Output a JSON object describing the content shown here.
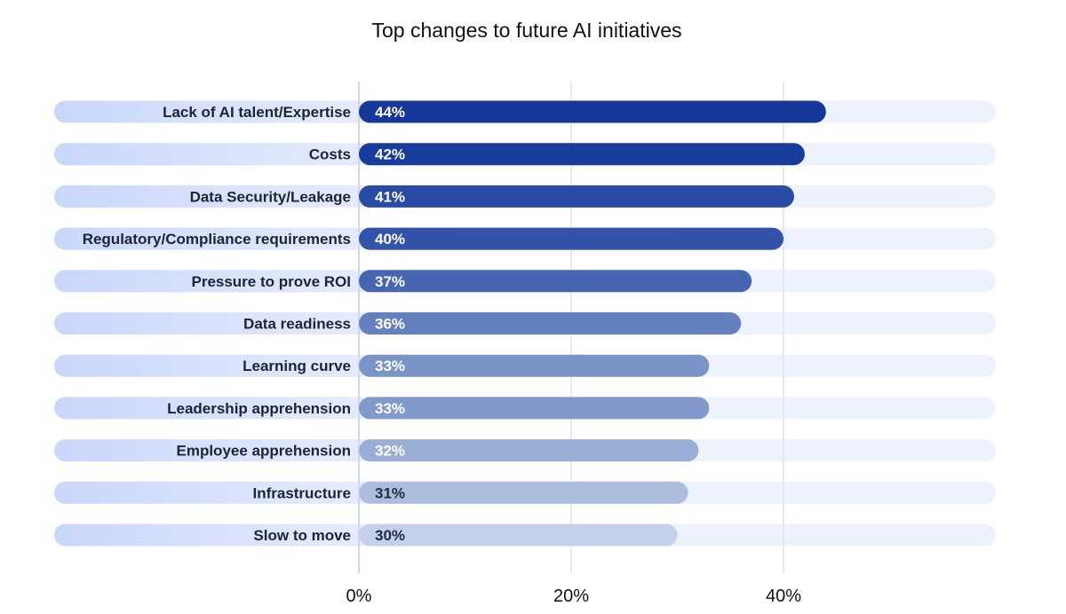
{
  "chart_data": {
    "type": "bar",
    "orientation": "horizontal",
    "title": "Top changes to future AI initiatives",
    "xlabel": "",
    "ylabel": "",
    "xlim": [
      0,
      59
    ],
    "x_ticks": [
      0,
      20,
      40
    ],
    "x_tick_labels": [
      "0%",
      "20%",
      "40%"
    ],
    "grid": true,
    "legend": "none",
    "categories": [
      "Lack of AI talent/Expertise",
      "Costs",
      "Data Security/Leakage",
      "Regulatory/Compliance requirements",
      "Pressure to prove ROI",
      "Data readiness",
      "Learning curve",
      "Leadership apprehension",
      "Employee apprehension",
      "Infrastructure",
      "Slow to move"
    ],
    "values": [
      44,
      42,
      41,
      40,
      37,
      36,
      33,
      33,
      32,
      31,
      30
    ],
    "value_labels": [
      "44%",
      "42%",
      "41%",
      "40%",
      "37%",
      "36%",
      "33%",
      "33%",
      "32%",
      "31%",
      "30%"
    ],
    "bar_colors": [
      "#16379a",
      "#183b9c",
      "#2a4ba3",
      "#3353a8",
      "#4666b2",
      "#6480be",
      "#7a94c8",
      "#8299cb",
      "#9aaed5",
      "#adbde0",
      "#c5d1ec"
    ],
    "label_colors": [
      "#ffffff",
      "#ffffff",
      "#ffffff",
      "#ffffff",
      "#ffffff",
      "#ffffff",
      "#ffffff",
      "#ffffff",
      "#ffffff",
      "#1f2a3d",
      "#1f2a3d"
    ]
  }
}
